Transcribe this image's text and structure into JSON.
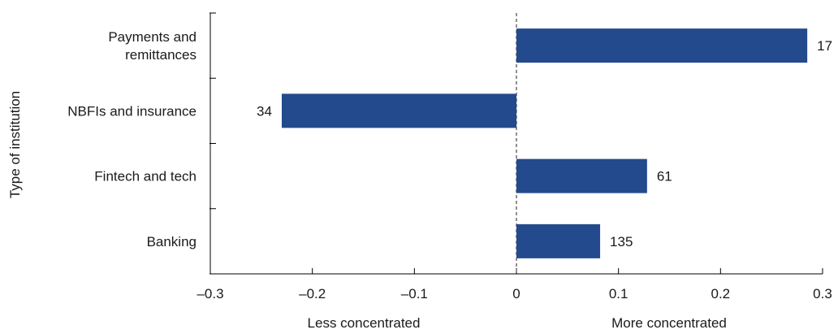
{
  "chart_data": {
    "type": "bar",
    "orientation": "horizontal",
    "ylabel": "Type of institution",
    "categories": [
      "Payments and remittances",
      "NBFIs and insurance",
      "Fintech and tech",
      "Banking"
    ],
    "category_lines": [
      [
        "Payments and",
        "remittances"
      ],
      [
        "NBFIs and insurance"
      ],
      [
        "Fintech and tech"
      ],
      [
        "Banking"
      ]
    ],
    "values": [
      0.285,
      -0.23,
      0.128,
      0.082
    ],
    "data_labels": [
      "17",
      "34",
      "61",
      "135"
    ],
    "xlim": [
      -0.3,
      0.3
    ],
    "xticks": [
      -0.3,
      -0.2,
      -0.1,
      0,
      0.1,
      0.2,
      0.3
    ],
    "xtick_labels": [
      "–0.3",
      "–0.2",
      "–0.1",
      "0",
      "0.1",
      "0.2",
      "0.3"
    ],
    "x_annotations": [
      "Less concentrated",
      "More concentrated"
    ],
    "bar_color": "#234a8c",
    "zero_line": "dashed",
    "grid": false,
    "legend": "none"
  }
}
